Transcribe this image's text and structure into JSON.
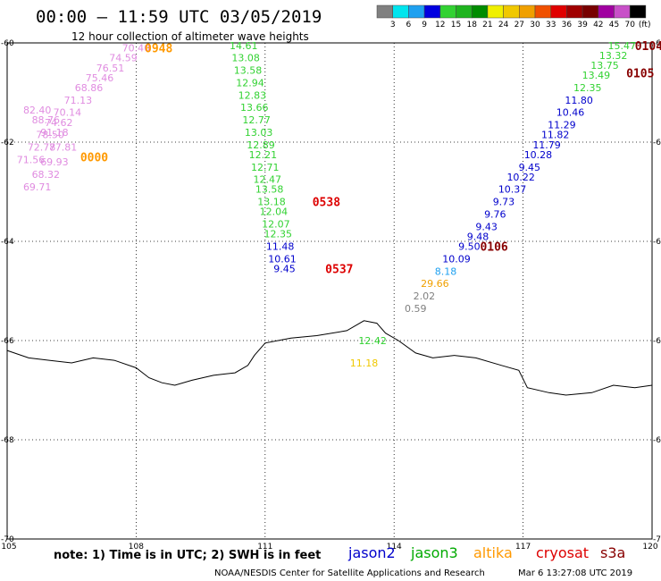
{
  "chart_data": {
    "type": "scatter",
    "title": "00:00 – 11:59 UTC 03/05/2019",
    "subtitle": "12 hour collection of altimeter wave heights",
    "x_ticks": [
      "105",
      "108",
      "111",
      "114",
      "117",
      "120"
    ],
    "y_ticks": [
      "-60",
      "-62",
      "-64",
      "-66",
      "-68",
      "-70"
    ],
    "xlim": [
      105,
      120
    ],
    "ylim": [
      -70,
      -60
    ],
    "grid": true,
    "colorbar": {
      "labels": [
        "3",
        "6",
        "9",
        "12",
        "15",
        "18",
        "21",
        "24",
        "27",
        "30",
        "33",
        "36",
        "39",
        "42",
        "45",
        "70"
      ],
      "unit": "(ft)",
      "colors": [
        "#808080",
        "#00e5ee",
        "#1ea0f0",
        "#0000e0",
        "#32d232",
        "#1eb41e",
        "#008c00",
        "#f0f000",
        "#f0c800",
        "#f0a000",
        "#f05000",
        "#e00000",
        "#a00000",
        "#780000",
        "#a000a0",
        "#c850c8",
        "#000000"
      ]
    },
    "series": [
      {
        "name": "jason2",
        "color": "#0000cc"
      },
      {
        "name": "jason3",
        "color": "#00aa00"
      },
      {
        "name": "altika",
        "color": "#ff9900"
      },
      {
        "name": "cryosat",
        "color": "#dd0000"
      },
      {
        "name": "s3a",
        "color": "#880000"
      }
    ],
    "tracks": [
      {
        "points": [
          {
            "lon": 108.0,
            "lat": -60.1,
            "value": "70.40",
            "color": "#e08ce0"
          },
          {
            "lon": 107.7,
            "lat": -60.3,
            "value": "74.59",
            "color": "#e08ce0"
          },
          {
            "lon": 107.4,
            "lat": -60.5,
            "value": "76.51",
            "color": "#e08ce0"
          },
          {
            "lon": 107.15,
            "lat": -60.7,
            "value": "75.46",
            "color": "#e08ce0"
          },
          {
            "lon": 106.9,
            "lat": -60.9,
            "value": "68.86",
            "color": "#e08ce0"
          },
          {
            "lon": 106.65,
            "lat": -61.15,
            "value": "71.13",
            "color": "#e08ce0"
          },
          {
            "lon": 106.4,
            "lat": -61.4,
            "value": "70.14",
            "color": "#e08ce0"
          },
          {
            "lon": 106.2,
            "lat": -61.6,
            "value": "74.62",
            "color": "#e08ce0"
          },
          {
            "lon": 106.0,
            "lat": -61.85,
            "value": "78.50",
            "color": "#e08ce0"
          },
          {
            "lon": 105.8,
            "lat": -62.1,
            "value": "72.78",
            "color": "#e08ce0"
          },
          {
            "lon": 105.55,
            "lat": -62.35,
            "value": "71.56",
            "color": "#e08ce0"
          }
        ]
      },
      {
        "points": [
          {
            "lon": 105.7,
            "lat": -61.35,
            "value": "82.40",
            "color": "#e08ce0"
          },
          {
            "lon": 105.9,
            "lat": -61.55,
            "value": "88.76",
            "color": "#e08ce0"
          },
          {
            "lon": 106.1,
            "lat": -61.8,
            "value": "91.18",
            "color": "#e08ce0"
          },
          {
            "lon": 106.3,
            "lat": -62.1,
            "value": "77.81",
            "color": "#e08ce0"
          },
          {
            "lon": 106.1,
            "lat": -62.4,
            "value": "69.93",
            "color": "#e08ce0"
          },
          {
            "lon": 105.9,
            "lat": -62.65,
            "value": "68.32",
            "color": "#e08ce0"
          },
          {
            "lon": 105.7,
            "lat": -62.9,
            "value": "69.71",
            "color": "#e08ce0"
          }
        ]
      },
      {
        "points": [
          {
            "lon": 110.5,
            "lat": -60.05,
            "value": "14.61",
            "color": "#32d232"
          },
          {
            "lon": 110.55,
            "lat": -60.3,
            "value": "13.08",
            "color": "#32d232"
          },
          {
            "lon": 110.6,
            "lat": -60.55,
            "value": "13.58",
            "color": "#32d232"
          },
          {
            "lon": 110.65,
            "lat": -60.8,
            "value": "12.94",
            "color": "#32d232"
          },
          {
            "lon": 110.7,
            "lat": -61.05,
            "value": "12.83",
            "color": "#32d232"
          },
          {
            "lon": 110.75,
            "lat": -61.3,
            "value": "13.66",
            "color": "#32d232"
          },
          {
            "lon": 110.8,
            "lat": -61.55,
            "value": "12.77",
            "color": "#32d232"
          },
          {
            "lon": 110.85,
            "lat": -61.8,
            "value": "13.03",
            "color": "#32d232"
          },
          {
            "lon": 110.9,
            "lat": -62.05,
            "value": "12.89",
            "color": "#32d232"
          },
          {
            "lon": 110.95,
            "lat": -62.25,
            "value": "12.21",
            "color": "#32d232"
          },
          {
            "lon": 111.0,
            "lat": -62.5,
            "value": "12.71",
            "color": "#32d232"
          },
          {
            "lon": 111.05,
            "lat": -62.75,
            "value": "12.47",
            "color": "#32d232"
          },
          {
            "lon": 111.1,
            "lat": -62.95,
            "value": "13.58",
            "color": "#32d232"
          },
          {
            "lon": 111.15,
            "lat": -63.2,
            "value": "13.18",
            "color": "#32d232"
          },
          {
            "lon": 111.2,
            "lat": -63.4,
            "value": "12.04",
            "color": "#32d232"
          },
          {
            "lon": 111.25,
            "lat": -63.65,
            "value": "12.07",
            "color": "#32d232"
          },
          {
            "lon": 111.3,
            "lat": -63.85,
            "value": "12.35",
            "color": "#32d232"
          },
          {
            "lon": 111.35,
            "lat": -64.1,
            "value": "11.48",
            "color": "#0000cc"
          },
          {
            "lon": 111.4,
            "lat": -64.35,
            "value": "10.61",
            "color": "#0000cc"
          },
          {
            "lon": 111.45,
            "lat": -64.55,
            "value": "9.45",
            "color": "#0000cc"
          }
        ]
      },
      {
        "points": [
          {
            "lon": 113.5,
            "lat": -66.0,
            "value": "12.42",
            "color": "#32d232"
          },
          {
            "lon": 113.3,
            "lat": -66.45,
            "value": "11.18",
            "color": "#f0c800"
          }
        ]
      },
      {
        "points": [
          {
            "lon": 119.3,
            "lat": -60.05,
            "value": "15.47",
            "color": "#32d232"
          },
          {
            "lon": 119.1,
            "lat": -60.25,
            "value": "13.32",
            "color": "#32d232"
          },
          {
            "lon": 118.9,
            "lat": -60.45,
            "value": "13.75",
            "color": "#32d232"
          },
          {
            "lon": 118.7,
            "lat": -60.65,
            "value": "13.49",
            "color": "#32d232"
          },
          {
            "lon": 118.5,
            "lat": -60.9,
            "value": "12.35",
            "color": "#32d232"
          },
          {
            "lon": 118.3,
            "lat": -61.15,
            "value": "11.80",
            "color": "#0000cc"
          },
          {
            "lon": 118.1,
            "lat": -61.4,
            "value": "10.46",
            "color": "#0000cc"
          },
          {
            "lon": 117.9,
            "lat": -61.65,
            "value": "11.29",
            "color": "#0000cc"
          },
          {
            "lon": 117.75,
            "lat": -61.85,
            "value": "11.82",
            "color": "#0000cc"
          },
          {
            "lon": 117.55,
            "lat": -62.05,
            "value": "11.79",
            "color": "#0000cc"
          },
          {
            "lon": 117.35,
            "lat": -62.25,
            "value": "10.28",
            "color": "#0000cc"
          },
          {
            "lon": 117.15,
            "lat": -62.5,
            "value": "9.45",
            "color": "#0000cc"
          },
          {
            "lon": 116.95,
            "lat": -62.7,
            "value": "10.22",
            "color": "#0000cc"
          },
          {
            "lon": 116.75,
            "lat": -62.95,
            "value": "10.37",
            "color": "#0000cc"
          },
          {
            "lon": 116.55,
            "lat": -63.2,
            "value": "9.73",
            "color": "#0000cc"
          },
          {
            "lon": 116.35,
            "lat": -63.45,
            "value": "9.76",
            "color": "#0000cc"
          },
          {
            "lon": 116.15,
            "lat": -63.7,
            "value": "9.43",
            "color": "#0000cc"
          },
          {
            "lon": 115.95,
            "lat": -63.9,
            "value": "9.48",
            "color": "#0000cc"
          },
          {
            "lon": 115.75,
            "lat": -64.1,
            "value": "9.50",
            "color": "#0000cc"
          },
          {
            "lon": 115.45,
            "lat": -64.35,
            "value": "10.09",
            "color": "#0000cc"
          },
          {
            "lon": 115.2,
            "lat": -64.6,
            "value": "8.18",
            "color": "#1ea0f0"
          },
          {
            "lon": 114.95,
            "lat": -64.85,
            "value": "29.66",
            "color": "#f0a000"
          },
          {
            "lon": 114.7,
            "lat": -65.1,
            "value": "2.02",
            "color": "#808080"
          },
          {
            "lon": 114.5,
            "lat": -65.35,
            "value": "0.59",
            "color": "#808080"
          }
        ]
      }
    ],
    "time_labels": [
      {
        "text": "0948",
        "lon": 108.2,
        "lat": -60.1,
        "color": "#ff9900"
      },
      {
        "text": "0000",
        "lon": 106.7,
        "lat": -62.3,
        "color": "#ff9900"
      },
      {
        "text": "0538",
        "lon": 112.1,
        "lat": -63.2,
        "color": "#dd0000"
      },
      {
        "text": "0537",
        "lon": 112.4,
        "lat": -64.55,
        "color": "#dd0000"
      },
      {
        "text": "0106",
        "lon": 116.0,
        "lat": -64.1,
        "color": "#880000"
      },
      {
        "text": "0104",
        "lon": 119.6,
        "lat": -60.05,
        "color": "#880000"
      },
      {
        "text": "0105",
        "lon": 119.4,
        "lat": -60.6,
        "color": "#880000"
      }
    ],
    "coastline": [
      [
        105.0,
        -66.2
      ],
      [
        105.5,
        -66.35
      ],
      [
        106.0,
        -66.4
      ],
      [
        106.5,
        -66.45
      ],
      [
        107.0,
        -66.35
      ],
      [
        107.5,
        -66.4
      ],
      [
        108.0,
        -66.55
      ],
      [
        108.3,
        -66.75
      ],
      [
        108.6,
        -66.85
      ],
      [
        108.9,
        -66.9
      ],
      [
        109.3,
        -66.8
      ],
      [
        109.8,
        -66.7
      ],
      [
        110.3,
        -66.65
      ],
      [
        110.6,
        -66.5
      ],
      [
        110.75,
        -66.3
      ],
      [
        111.0,
        -66.05
      ],
      [
        111.6,
        -65.95
      ],
      [
        112.2,
        -65.9
      ],
      [
        112.9,
        -65.8
      ],
      [
        113.3,
        -65.6
      ],
      [
        113.6,
        -65.65
      ],
      [
        113.8,
        -65.85
      ],
      [
        114.1,
        -66.0
      ],
      [
        114.5,
        -66.25
      ],
      [
        114.9,
        -66.35
      ],
      [
        115.4,
        -66.3
      ],
      [
        115.9,
        -66.35
      ],
      [
        116.5,
        -66.5
      ],
      [
        116.9,
        -66.6
      ],
      [
        117.1,
        -66.95
      ],
      [
        117.6,
        -67.05
      ],
      [
        118.0,
        -67.1
      ],
      [
        118.6,
        -67.05
      ],
      [
        119.1,
        -66.9
      ],
      [
        119.6,
        -66.95
      ],
      [
        120.0,
        -66.9
      ]
    ]
  },
  "footer": {
    "note": "note: 1) Time is in UTC; 2) SWH is in feet",
    "credit_left": "NOAA/NESDIS Center for Satellite Applications and Research",
    "credit_right": "Mar  6 13:27:08 UTC 2019"
  }
}
